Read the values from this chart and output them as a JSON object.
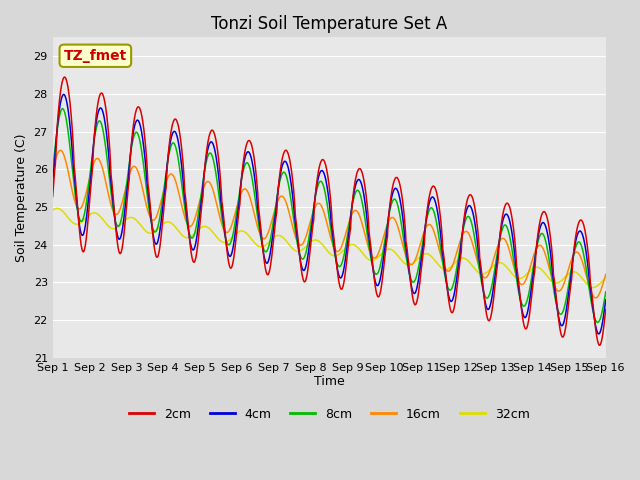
{
  "title": "Tonzi Soil Temperature Set A",
  "xlabel": "Time",
  "ylabel": "Soil Temperature (C)",
  "ylim": [
    21.0,
    29.5
  ],
  "xlim": [
    0,
    15
  ],
  "x_tick_labels": [
    "Sep 1",
    "Sep 2",
    "Sep 3",
    "Sep 4",
    "Sep 5",
    "Sep 6",
    "Sep 7",
    "Sep 8",
    "Sep 9",
    "Sep 10",
    "Sep 11",
    "Sep 12",
    "Sep 13",
    "Sep 14",
    "Sep 15",
    "Sep 16"
  ],
  "annotation_text": "TZ_fmet",
  "legend_labels": [
    "2cm",
    "4cm",
    "8cm",
    "16cm",
    "32cm"
  ],
  "line_colors": [
    "#dd0000",
    "#0000dd",
    "#00bb00",
    "#ff8800",
    "#dddd00"
  ],
  "background_color": "#e8e8e8",
  "grid_color": "#ffffff",
  "title_fontsize": 12,
  "label_fontsize": 9,
  "tick_fontsize": 8
}
